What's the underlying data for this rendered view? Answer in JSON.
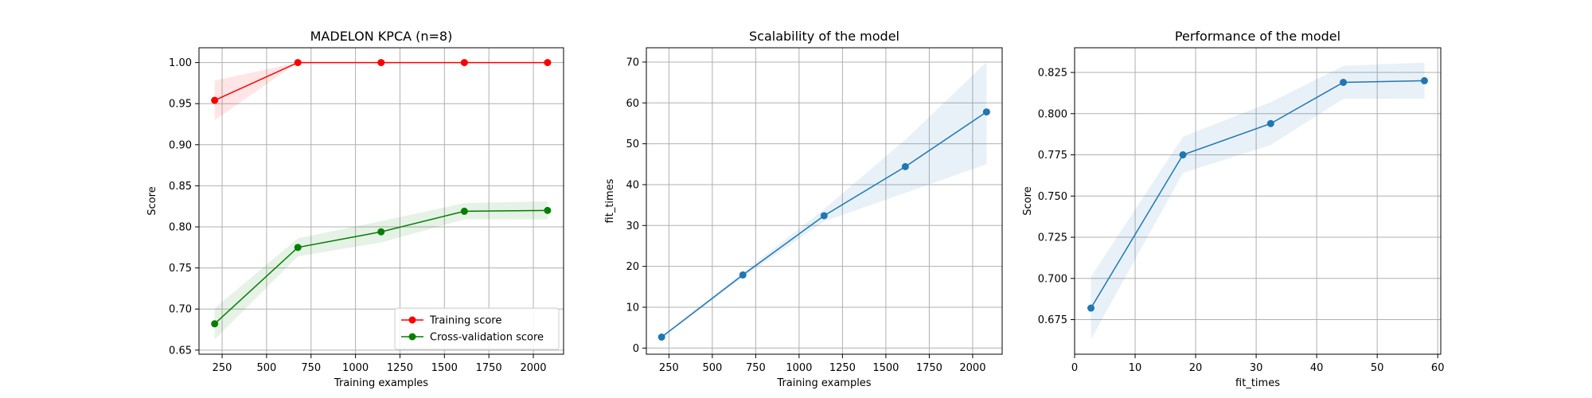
{
  "chart_data": [
    {
      "type": "line",
      "title": "MADELON KPCA (n=8)",
      "xlabel": "Training examples",
      "ylabel": "Score",
      "xlim": [
        120,
        2170
      ],
      "ylim": [
        0.645,
        1.018
      ],
      "xticks": [
        250,
        500,
        750,
        1000,
        1250,
        1500,
        1750,
        2000
      ],
      "xtick_labels": [
        "250",
        "500",
        "750",
        "1000",
        "1250",
        "1500",
        "1750",
        "2000"
      ],
      "yticks": [
        0.65,
        0.7,
        0.75,
        0.8,
        0.85,
        0.9,
        0.95,
        1.0
      ],
      "ytick_labels": [
        "0.65",
        "0.70",
        "0.75",
        "0.80",
        "0.85",
        "0.90",
        "0.95",
        "1.00"
      ],
      "grid": true,
      "legend": "lower-right",
      "x": [
        208,
        676,
        1144,
        1612,
        2080
      ],
      "series": [
        {
          "name": "Training score",
          "color": "#ff0000",
          "values": [
            0.954,
            1.0,
            1.0,
            1.0,
            1.0
          ],
          "band_lower": [
            0.93,
            1.0,
            1.0,
            1.0,
            1.0
          ],
          "band_upper": [
            0.978,
            1.0,
            1.0,
            1.0,
            1.0
          ]
        },
        {
          "name": "Cross-validation score",
          "color": "#008000",
          "values": [
            0.682,
            0.775,
            0.794,
            0.819,
            0.82
          ],
          "band_lower": [
            0.663,
            0.764,
            0.781,
            0.809,
            0.809
          ],
          "band_upper": [
            0.701,
            0.786,
            0.807,
            0.829,
            0.831
          ]
        }
      ]
    },
    {
      "type": "line",
      "title": "Scalability of the model",
      "xlabel": "Training examples",
      "ylabel": "fit_times",
      "xlim": [
        120,
        2170
      ],
      "ylim": [
        -1.5,
        73.5
      ],
      "xticks": [
        250,
        500,
        750,
        1000,
        1250,
        1500,
        1750,
        2000
      ],
      "xtick_labels": [
        "250",
        "500",
        "750",
        "1000",
        "1250",
        "1500",
        "1750",
        "2000"
      ],
      "yticks": [
        0,
        10,
        20,
        30,
        40,
        50,
        60,
        70
      ],
      "ytick_labels": [
        "0",
        "10",
        "20",
        "30",
        "40",
        "50",
        "60",
        "70"
      ],
      "grid": true,
      "x": [
        208,
        676,
        1144,
        1612,
        2080
      ],
      "series": [
        {
          "color": "#1f77b4",
          "values": [
            2.7,
            17.9,
            32.4,
            44.4,
            57.8
          ],
          "band_lower": [
            2.4,
            17.3,
            31.0,
            38.0,
            45.0
          ],
          "band_upper": [
            3.0,
            18.5,
            34.0,
            51.0,
            70.0
          ]
        }
      ]
    },
    {
      "type": "line",
      "title": "Performance of the model",
      "xlabel": "fit_times",
      "ylabel": "Score",
      "xlim": [
        0,
        60.5
      ],
      "ylim": [
        0.654,
        0.84
      ],
      "xticks": [
        0,
        10,
        20,
        30,
        40,
        50,
        60
      ],
      "xtick_labels": [
        "0",
        "10",
        "20",
        "30",
        "40",
        "50",
        "60"
      ],
      "yticks": [
        0.675,
        0.7,
        0.725,
        0.75,
        0.775,
        0.8,
        0.825
      ],
      "ytick_labels": [
        "0.675",
        "0.700",
        "0.725",
        "0.750",
        "0.775",
        "0.800",
        "0.825"
      ],
      "grid": true,
      "x": [
        2.7,
        17.9,
        32.4,
        44.4,
        57.8
      ],
      "series": [
        {
          "color": "#1f77b4",
          "values": [
            0.682,
            0.775,
            0.794,
            0.819,
            0.82
          ],
          "band_lower": [
            0.663,
            0.764,
            0.781,
            0.809,
            0.809
          ],
          "band_upper": [
            0.701,
            0.786,
            0.807,
            0.829,
            0.831
          ]
        }
      ]
    }
  ]
}
